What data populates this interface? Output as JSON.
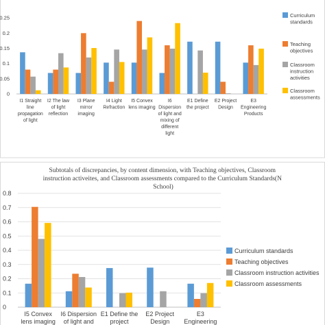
{
  "colors": {
    "Curriculum standards": "#5b9bd5",
    "Teaching objectives": "#ed7d31",
    "Classroom instruction activities": "#a5a5a5",
    "Classroom assessments": "#ffc000"
  },
  "chart_data": [
    {
      "type": "bar",
      "title": "",
      "xlabel": "",
      "ylabel": "",
      "ylim": [
        0,
        0.3
      ],
      "yticks": [
        "0",
        "0.05",
        "0.1",
        "0.15",
        "0.2",
        "0.25"
      ],
      "grid": false,
      "legend_position": "right",
      "categories": [
        "I1 Straight line propagation of light",
        "I2 The law of light reflection",
        "I3 Plane mirror imaging",
        "I4 Light Refraction",
        "I5 Convex lens imaging",
        "I6 Dispersion of light and mixing of different light",
        "E1 Define the project",
        "E2 Project Design",
        "E3 Engineering Products"
      ],
      "category_lines": [
        [
          "I1  Straight",
          "line",
          "propagation",
          "of light"
        ],
        [
          "I2  The law",
          "of light",
          "reflection"
        ],
        [
          "I3  Plane",
          "mirror",
          "imaging"
        ],
        [
          "I4  Light",
          "Refraction"
        ],
        [
          "I5  Convex",
          "lens imaging"
        ],
        [
          "I6",
          "Dispersion",
          "of light and",
          "mixing of",
          "different",
          "light"
        ],
        [
          "E1  Define",
          "the project"
        ],
        [
          "E2  Project",
          "Design"
        ],
        [
          "E3",
          "Engineering",
          "Products"
        ]
      ],
      "legend_lines": [
        [
          "Curriculum",
          "standards"
        ],
        [
          "Teaching",
          "objectives"
        ],
        [
          "Classroom",
          "instruction",
          "activities"
        ],
        [
          "Classroom",
          "assessments"
        ]
      ],
      "series": [
        {
          "name": "Curriculum standards",
          "values": [
            0.137,
            0.069,
            0.069,
            0.103,
            0.103,
            0.069,
            0.172,
            0.172,
            0.103
          ]
        },
        {
          "name": "Teaching objectives",
          "values": [
            0.08,
            0.08,
            0.2,
            0.04,
            0.24,
            0.16,
            0.0,
            0.04,
            0.16
          ]
        },
        {
          "name": "Classroom instruction activities",
          "values": [
            0.057,
            0.134,
            0.12,
            0.146,
            0.146,
            0.149,
            0.143,
            0.002,
            0.095
          ]
        },
        {
          "name": "Classroom assessments",
          "values": [
            0.012,
            0.087,
            0.151,
            0.105,
            0.186,
            0.233,
            0.07,
            0.0,
            0.149
          ]
        }
      ]
    },
    {
      "type": "bar",
      "title": "Subtotals of discrepancies, by content dimension, with Teaching objectives, Classroom instruction activeites, and Classroom assessments compared to the Curriculum Standards(N School)",
      "title_lines": [
        "Subtotals of discrepancies, by content dimension, with Teaching objectives, Classroom",
        "instruction activeites, and Classroom assessments compared to the Curriculum Standards(N",
        "School)"
      ],
      "xlabel": "",
      "ylabel": "",
      "ylim": [
        0,
        0.8
      ],
      "yticks": [
        "0",
        "0.1",
        "0.2",
        "0.3",
        "0.4",
        "0.5",
        "0.6",
        "0.7",
        "0.8"
      ],
      "grid": true,
      "legend_position": "right",
      "categories": [
        "I5 Convex lens imaging",
        "I6 Dispersion of light and",
        "E1 Define the project",
        "E2 Project Design",
        "E3 Engineering"
      ],
      "category_lines": [
        [
          "I5  Convex",
          "lens imaging"
        ],
        [
          "I6  Dispersion",
          "of light and"
        ],
        [
          "E1  Define the",
          "project"
        ],
        [
          "E2  Project",
          "Design"
        ],
        [
          "E3",
          "Engineering"
        ]
      ],
      "series": [
        {
          "name": "Curriculum standards",
          "values": [
            0.165,
            0.112,
            0.275,
            0.278,
            0.165
          ]
        },
        {
          "name": "Teaching objectives",
          "values": [
            0.705,
            0.235,
            0.0,
            0.0,
            0.058
          ]
        },
        {
          "name": "Classroom instruction activities",
          "values": [
            0.48,
            0.212,
            0.098,
            0.112,
            0.098
          ]
        },
        {
          "name": "Classroom assessments",
          "values": [
            0.592,
            0.138,
            0.102,
            0.0,
            0.17
          ]
        }
      ]
    }
  ]
}
